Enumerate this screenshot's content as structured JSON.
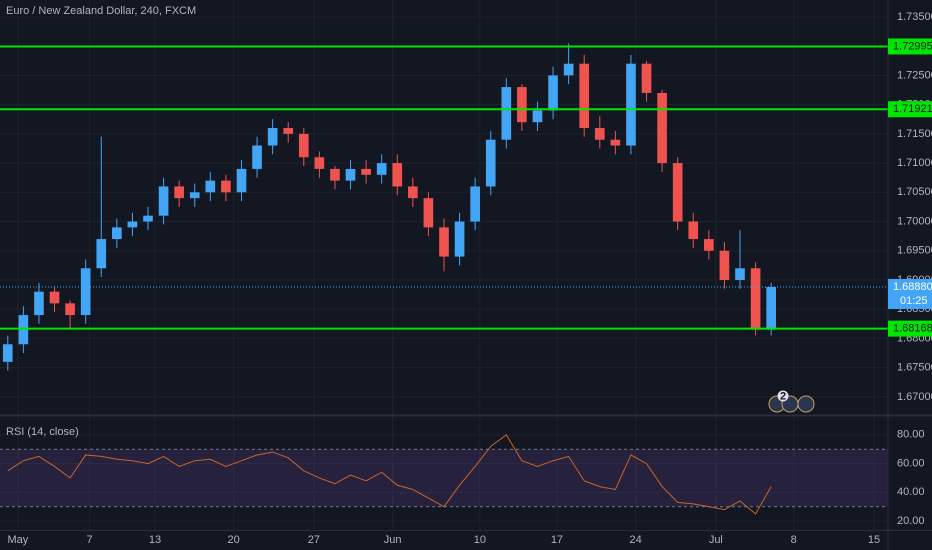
{
  "chart_data": {
    "type": "candlestick",
    "title": "Euro / New Zealand Dollar, 240, FXCM",
    "up_color": "#42a5f5",
    "down_color": "#ef5350",
    "opens": [
      1.676,
      1.679,
      1.684,
      1.688,
      1.686,
      1.684,
      1.692,
      1.697,
      1.699,
      1.7,
      1.701,
      1.706,
      1.704,
      1.705,
      1.707,
      1.705,
      1.709,
      1.713,
      1.716,
      1.715,
      1.711,
      1.709,
      1.707,
      1.709,
      1.708,
      1.71,
      1.706,
      1.704,
      1.699,
      1.694,
      1.7,
      1.706,
      1.714,
      1.723,
      1.717,
      1.719,
      1.725,
      1.727,
      1.716,
      1.714,
      1.713,
      1.727,
      1.722,
      1.71,
      1.7,
      1.697,
      1.695,
      1.69,
      1.692,
      1.6815
    ],
    "highs": [
      1.6805,
      1.6855,
      1.6895,
      1.689,
      1.6865,
      1.6935,
      1.7145,
      1.7005,
      1.7015,
      1.7025,
      1.7075,
      1.707,
      1.7065,
      1.7085,
      1.708,
      1.7105,
      1.7145,
      1.7175,
      1.717,
      1.716,
      1.712,
      1.7095,
      1.7105,
      1.7105,
      1.7115,
      1.7115,
      1.7075,
      1.705,
      1.7005,
      1.7015,
      1.7075,
      1.7155,
      1.7245,
      1.7235,
      1.7205,
      1.7265,
      1.7305,
      1.7285,
      1.718,
      1.7155,
      1.7285,
      1.7275,
      1.7225,
      1.711,
      1.7015,
      1.6985,
      1.6965,
      1.6985,
      1.693,
      1.6895
    ],
    "lows": [
      1.6745,
      1.6775,
      1.6825,
      1.6845,
      1.6815,
      1.6825,
      1.6905,
      1.6955,
      1.6975,
      1.6985,
      1.6995,
      1.7025,
      1.7025,
      1.7035,
      1.7035,
      1.7035,
      1.7075,
      1.7115,
      1.7135,
      1.7095,
      1.7075,
      1.7055,
      1.7055,
      1.7065,
      1.7065,
      1.7045,
      1.7025,
      1.6975,
      1.6915,
      1.6925,
      1.6985,
      1.7045,
      1.7125,
      1.7155,
      1.7155,
      1.7175,
      1.7235,
      1.7145,
      1.7125,
      1.7115,
      1.7115,
      1.7205,
      1.7085,
      1.6985,
      1.6955,
      1.6935,
      1.6885,
      1.6885,
      1.6805,
      1.6805
    ],
    "closes": [
      1.679,
      1.684,
      1.688,
      1.686,
      1.684,
      1.692,
      1.697,
      1.699,
      1.7,
      1.701,
      1.706,
      1.704,
      1.705,
      1.707,
      1.705,
      1.709,
      1.713,
      1.716,
      1.715,
      1.711,
      1.709,
      1.707,
      1.709,
      1.708,
      1.71,
      1.706,
      1.704,
      1.699,
      1.694,
      1.7,
      1.706,
      1.714,
      1.723,
      1.717,
      1.719,
      1.725,
      1.727,
      1.716,
      1.714,
      1.713,
      1.727,
      1.722,
      1.71,
      1.7,
      1.697,
      1.695,
      1.69,
      1.692,
      1.6815,
      1.6888
    ],
    "xlim": [
      0,
      57
    ],
    "xticks": [
      {
        "value": 1.15,
        "label": "May"
      },
      {
        "value": 5.75,
        "label": "7"
      },
      {
        "value": 9.95,
        "label": "13"
      },
      {
        "value": 15,
        "label": "20"
      },
      {
        "value": 20.15,
        "label": "27"
      },
      {
        "value": 25.2,
        "label": "Jun"
      },
      {
        "value": 30.8,
        "label": "10"
      },
      {
        "value": 35.75,
        "label": "17"
      },
      {
        "value": 40.8,
        "label": "24"
      },
      {
        "value": 45.95,
        "label": "Jul"
      },
      {
        "value": 50.95,
        "label": "8"
      },
      {
        "value": 56.1,
        "label": "15"
      }
    ],
    "ylim": [
      1.6669,
      1.7379
    ],
    "yticks": [
      {
        "value": 1.67,
        "label": "1.67000"
      },
      {
        "value": 1.675,
        "label": "1.67500"
      },
      {
        "value": 1.68,
        "label": "1.68000"
      },
      {
        "value": 1.685,
        "label": "1.68500"
      },
      {
        "value": 1.69,
        "label": "1.69000"
      },
      {
        "value": 1.695,
        "label": "1.69500"
      },
      {
        "value": 1.7,
        "label": "1.70000"
      },
      {
        "value": 1.705,
        "label": "1.70500"
      },
      {
        "value": 1.71,
        "label": "1.71000"
      },
      {
        "value": 1.715,
        "label": "1.71500"
      },
      {
        "value": 1.72,
        "label": "1.72000"
      },
      {
        "value": 1.725,
        "label": "1.72500"
      },
      {
        "value": 1.73,
        "label": "1.73000"
      },
      {
        "value": 1.735,
        "label": "1.73500"
      }
    ],
    "levels": [
      {
        "value": 1.72995,
        "label": "1.72995"
      },
      {
        "value": 1.71921,
        "label": "1.71921"
      },
      {
        "value": 1.68168,
        "label": "1.68168"
      }
    ],
    "level_color": "#00e600",
    "last_price": {
      "value": 1.6888,
      "label": "1.68880"
    },
    "countdown": "01:25",
    "event_badge": "2",
    "grid": true,
    "rsi": {
      "label": "RSI (14, close)",
      "color": "#c8642a",
      "values": [
        55,
        62,
        65,
        58,
        50,
        66,
        65,
        63,
        62,
        60,
        65,
        58,
        62,
        63,
        58,
        62,
        66,
        68,
        64,
        55,
        50,
        46,
        52,
        48,
        54,
        45,
        42,
        36,
        30,
        45,
        58,
        72,
        80,
        62,
        58,
        62,
        65,
        48,
        44,
        42,
        66,
        60,
        44,
        33,
        32,
        30,
        28,
        34,
        25,
        44
      ],
      "ylim": [
        13.8,
        93.1
      ],
      "yticks": [
        {
          "value": 20,
          "label": "20.00"
        },
        {
          "value": 40,
          "label": "40.00"
        },
        {
          "value": 60,
          "label": "60.00"
        },
        {
          "value": 80,
          "label": "80.00"
        }
      ],
      "bands": [
        30,
        70
      ]
    }
  }
}
